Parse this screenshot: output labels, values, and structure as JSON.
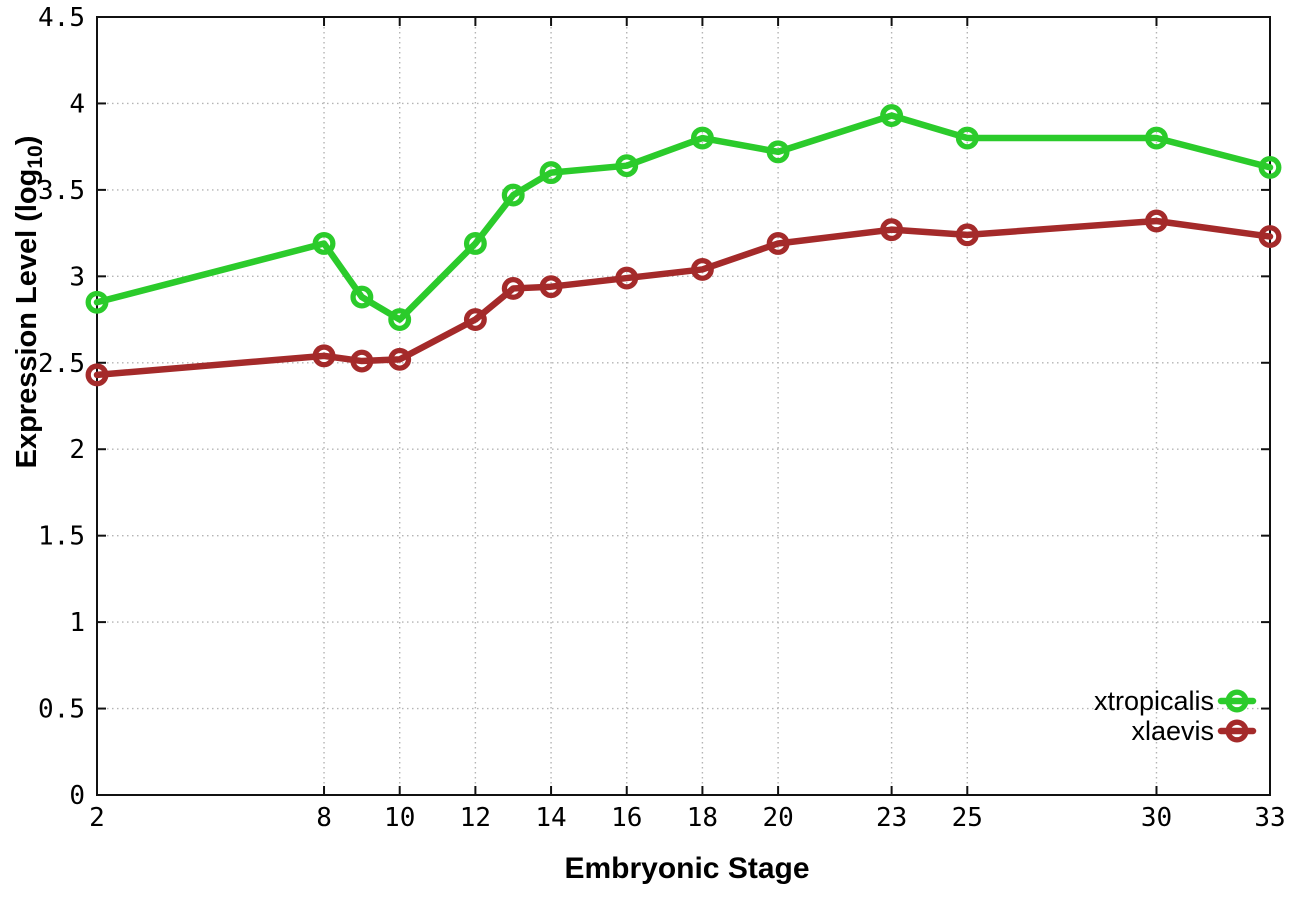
{
  "chart_data": {
    "type": "line",
    "title": "",
    "xlabel": "Embryonic Stage",
    "ylabel": "Expression Level (log10)",
    "ylabel_prefix": "Expression Level (log",
    "ylabel_sub": "10",
    "ylabel_suffix": ")",
    "x": [
      2,
      8,
      9,
      10,
      12,
      13,
      14,
      16,
      18,
      20,
      23,
      25,
      30,
      33
    ],
    "xticks": [
      2,
      8,
      10,
      12,
      14,
      16,
      18,
      20,
      23,
      25,
      30,
      33
    ],
    "yticks": [
      0,
      0.5,
      1,
      1.5,
      2,
      2.5,
      3,
      3.5,
      4,
      4.5
    ],
    "ytick_labels": [
      "0",
      "0.5",
      "1",
      "1.5",
      "2",
      "2.5",
      "3",
      "3.5",
      "4",
      "4.5"
    ],
    "xlim": [
      2,
      33
    ],
    "ylim": [
      0,
      4.5
    ],
    "grid": true,
    "legend_position": "bottom-right",
    "series": [
      {
        "name": "xtropicalis",
        "color": "#2bcb2b",
        "values": [
          2.85,
          3.19,
          2.88,
          2.75,
          3.19,
          3.47,
          3.6,
          3.64,
          3.8,
          3.72,
          3.93,
          3.8,
          3.8,
          3.63
        ]
      },
      {
        "name": "xlaevis",
        "color": "#a42a2a",
        "values": [
          2.43,
          2.54,
          2.51,
          2.52,
          2.75,
          2.93,
          2.94,
          2.99,
          3.04,
          3.19,
          3.27,
          3.24,
          3.32,
          3.23
        ]
      }
    ]
  }
}
